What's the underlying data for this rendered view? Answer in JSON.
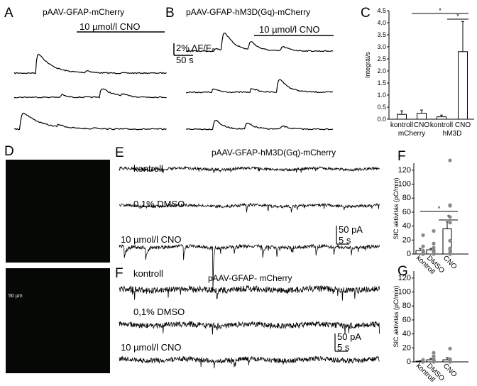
{
  "panels": {
    "A": "A",
    "B": "B",
    "C": "C",
    "D": "D",
    "E": "E",
    "F": "F",
    "F2": "F",
    "G": "G"
  },
  "panel_a": {
    "title": "pAAV-GFAP-mCherry",
    "stim": "10 µmol/l CNO",
    "scale_y": "2% ΔF/F₀",
    "scale_x": "50 s"
  },
  "panel_b": {
    "title": "pAAV-GFAP-hM3D(Gq)-mCherry",
    "stim": "10 µmol/l CNO"
  },
  "panel_d": {
    "scale_bar": "50 µm"
  },
  "panel_e": {
    "title": "pAAV-GFAP-hM3D(Gq)-mCherry",
    "rows": [
      "kontroll",
      "0,1% DMSO",
      "10 µmol/l CNO"
    ],
    "scale_y": "50 pA",
    "scale_x": "5 s"
  },
  "panel_f": {
    "title": "pAAV-GFAP- mCherry",
    "rows": [
      "kontroll",
      "0,1% DMSO",
      "10 µmol/l CNO"
    ],
    "scale_y": "50 pA",
    "scale_x": "5 s"
  },
  "chart_data": [
    {
      "panel": "C",
      "type": "bar",
      "ylabel": "Integrál/s",
      "ylim": [
        0,
        4.5
      ],
      "yticks": [
        "0.0",
        "0.5",
        "1.0",
        "1.5",
        "2.0",
        "2.5",
        "3.0",
        "3.5",
        "4.0",
        "4.5"
      ],
      "categories": [
        "kontroll",
        "CNO",
        "kontroll",
        "CNO"
      ],
      "groups": [
        "mCherry",
        "hM3D"
      ],
      "values": [
        0.2,
        0.25,
        0.1,
        2.8
      ],
      "errors": [
        0.15,
        0.13,
        0.07,
        1.25
      ],
      "significance": [
        "*",
        "*"
      ]
    },
    {
      "panel": "F",
      "type": "bar",
      "ylabel": "SIC aktivitás (pC/min)",
      "ylim": [
        0,
        130
      ],
      "yticks": [
        "0",
        "20",
        "40",
        "60",
        "80",
        "100",
        "120"
      ],
      "categories": [
        "kontroll",
        "DMSO",
        "CNO"
      ],
      "values": [
        5,
        6,
        36
      ],
      "errors": [
        3,
        2,
        10
      ],
      "points": [
        [
          0,
          0,
          1,
          5,
          11,
          27
        ],
        [
          0,
          3,
          5,
          9,
          15,
          33
        ],
        [
          0,
          2,
          6,
          8,
          19,
          45,
          53,
          69,
          70,
          134
        ]
      ],
      "significance": [
        "*",
        "*"
      ]
    },
    {
      "panel": "G",
      "type": "bar",
      "ylabel": "SIC aktivitás (pC/min)",
      "ylim": [
        0,
        130
      ],
      "yticks": [
        "0",
        "20",
        "40",
        "60",
        "80",
        "100",
        "120"
      ],
      "categories": [
        "kontroll",
        "DMSO",
        "CNO"
      ],
      "values": [
        1,
        3,
        3
      ],
      "errors": [
        0.5,
        2,
        3
      ],
      "points": [
        [
          0,
          1,
          2,
          3
        ],
        [
          0,
          4,
          8,
          13
        ],
        [
          0,
          2,
          4,
          19
        ]
      ]
    }
  ]
}
